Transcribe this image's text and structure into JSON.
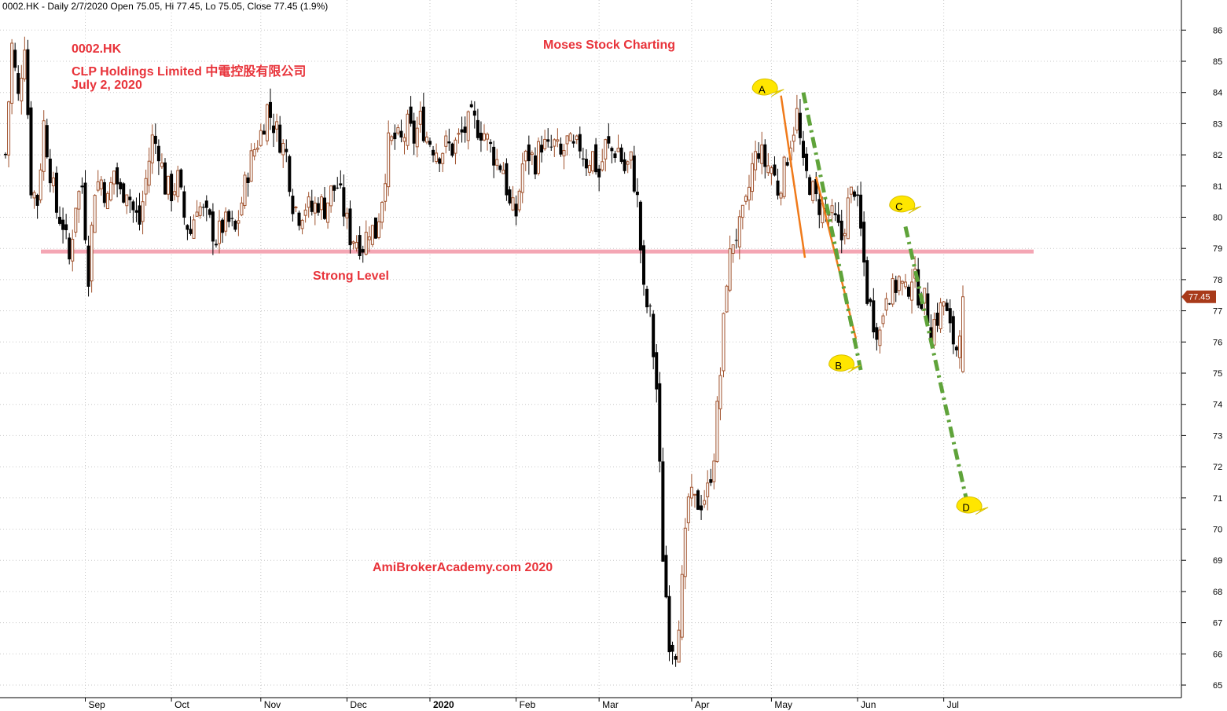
{
  "header": "0002.HK - Daily 2/7/2020 Open 75.05, Hi 77.45, Lo 75.05, Close 77.45 (1.9%)",
  "annotations": {
    "ticker": "0002.HK",
    "company": "CLP Holdings Limited 中電控股有限公司",
    "date": "July 2, 2020",
    "title": "Moses Stock Charting",
    "level_label": "Strong Level",
    "watermark": "AmiBrokerAcademy.com  2020"
  },
  "colors": {
    "up_candle": "#a0522d",
    "down_candle": "#000000",
    "strong_level": "#f4a6b4",
    "trend_orange": "#f07a1a",
    "trend_green": "#5fa33a",
    "callout": "#ffe600",
    "price_tag": "#a83a1a"
  },
  "chart_data": {
    "type": "candlestick",
    "ylim": [
      64.6,
      86.8
    ],
    "y_ticks": [
      65,
      66,
      67,
      68,
      69,
      70,
      71,
      72,
      73,
      74,
      75,
      76,
      77,
      78,
      79,
      80,
      81,
      82,
      83,
      84,
      85,
      86
    ],
    "x_ticks": [
      {
        "label": "Sep",
        "index": 25
      },
      {
        "label": "Oct",
        "index": 52
      },
      {
        "label": "Nov",
        "index": 80
      },
      {
        "label": "Dec",
        "index": 107
      },
      {
        "label": "2020",
        "index": 133
      },
      {
        "label": "Feb",
        "index": 160
      },
      {
        "label": "Mar",
        "index": 186
      },
      {
        "label": "Apr",
        "index": 215
      },
      {
        "label": "May",
        "index": 240
      },
      {
        "label": "Jun",
        "index": 267
      },
      {
        "label": "Jul",
        "index": 294
      }
    ],
    "strong_level": 78.9,
    "last_price": "77.45",
    "anchors": [
      [
        0,
        82
      ],
      [
        2,
        85.5
      ],
      [
        4,
        83.8
      ],
      [
        6,
        85.7
      ],
      [
        8,
        81
      ],
      [
        10,
        80.5
      ],
      [
        12,
        83
      ],
      [
        14,
        81.5
      ],
      [
        16,
        80.2
      ],
      [
        18,
        79.8
      ],
      [
        20,
        78.6
      ],
      [
        22,
        80.5
      ],
      [
        24,
        81
      ],
      [
        26,
        78.2
      ],
      [
        28,
        81
      ],
      [
        30,
        81.2
      ],
      [
        32,
        80.5
      ],
      [
        34,
        81.5
      ],
      [
        36,
        80.7
      ],
      [
        38,
        81
      ],
      [
        40,
        80.2
      ],
      [
        42,
        79.8
      ],
      [
        44,
        81.2
      ],
      [
        46,
        82.5
      ],
      [
        48,
        82.2
      ],
      [
        50,
        81
      ],
      [
        52,
        80.8
      ],
      [
        54,
        81.2
      ],
      [
        56,
        80
      ],
      [
        58,
        79.5
      ],
      [
        60,
        80.5
      ],
      [
        62,
        80.1
      ],
      [
        64,
        79.8
      ],
      [
        66,
        79.3
      ],
      [
        68,
        79.7
      ],
      [
        70,
        79.8
      ],
      [
        72,
        79.5
      ],
      [
        74,
        80.5
      ],
      [
        76,
        81.5
      ],
      [
        78,
        82.2
      ],
      [
        80,
        82.7
      ],
      [
        82,
        83.5
      ],
      [
        84,
        83
      ],
      [
        86,
        82.5
      ],
      [
        88,
        82
      ],
      [
        90,
        80.5
      ],
      [
        92,
        80.1
      ],
      [
        94,
        80.4
      ],
      [
        96,
        80.2
      ],
      [
        98,
        80.5
      ],
      [
        100,
        80.3
      ],
      [
        102,
        80.8
      ],
      [
        104,
        81
      ],
      [
        106,
        80.2
      ],
      [
        108,
        79.4
      ],
      [
        110,
        79.3
      ],
      [
        112,
        79.1
      ],
      [
        114,
        79.7
      ],
      [
        116,
        79.5
      ],
      [
        118,
        80.7
      ],
      [
        120,
        82.3
      ],
      [
        122,
        82.5
      ],
      [
        124,
        82.4
      ],
      [
        126,
        82.9
      ],
      [
        128,
        82.5
      ],
      [
        130,
        83.1
      ],
      [
        132,
        82.6
      ],
      [
        134,
        82.3
      ],
      [
        136,
        82.1
      ],
      [
        138,
        82.3
      ],
      [
        140,
        82.2
      ],
      [
        142,
        82.5
      ],
      [
        144,
        82.8
      ],
      [
        146,
        83.1
      ],
      [
        148,
        82.9
      ],
      [
        150,
        82.7
      ],
      [
        152,
        82.2
      ],
      [
        154,
        81.8
      ],
      [
        156,
        81.6
      ],
      [
        158,
        80.3
      ],
      [
        160,
        80.1
      ],
      [
        162,
        81.7
      ],
      [
        164,
        82
      ],
      [
        166,
        81.8
      ],
      [
        168,
        82.4
      ],
      [
        170,
        82.1
      ],
      [
        172,
        82.3
      ],
      [
        174,
        81.9
      ],
      [
        176,
        82.4
      ],
      [
        178,
        82.1
      ],
      [
        180,
        82.3
      ],
      [
        182,
        81.8
      ],
      [
        184,
        82
      ],
      [
        186,
        81.3
      ],
      [
        188,
        82.3
      ],
      [
        190,
        82.1
      ],
      [
        192,
        82.2
      ],
      [
        194,
        81.5
      ],
      [
        196,
        81.8
      ],
      [
        198,
        80.5
      ],
      [
        200,
        77.5
      ],
      [
        202,
        76.8
      ],
      [
        204,
        74.5
      ],
      [
        206,
        69.2
      ],
      [
        208,
        66.5
      ],
      [
        210,
        66.2
      ],
      [
        212,
        68.2
      ],
      [
        214,
        71
      ],
      [
        216,
        70.8
      ],
      [
        218,
        70.9
      ],
      [
        220,
        71.2
      ],
      [
        222,
        72.5
      ],
      [
        224,
        75
      ],
      [
        226,
        78.1
      ],
      [
        228,
        79.3
      ],
      [
        230,
        79.6
      ],
      [
        232,
        80.3
      ],
      [
        234,
        81.6
      ],
      [
        236,
        82.2
      ],
      [
        238,
        81.7
      ],
      [
        240,
        81.6
      ],
      [
        242,
        80.9
      ],
      [
        244,
        81.5
      ],
      [
        246,
        82.5
      ],
      [
        248,
        83.3
      ],
      [
        250,
        81.5
      ],
      [
        252,
        81.1
      ],
      [
        254,
        80.5
      ],
      [
        256,
        80.3
      ],
      [
        258,
        80.1
      ],
      [
        260,
        79.8
      ],
      [
        262,
        79.3
      ],
      [
        264,
        80.4
      ],
      [
        266,
        81
      ],
      [
        268,
        79.5
      ],
      [
        270,
        77.5
      ],
      [
        272,
        76.7
      ],
      [
        274,
        76.3
      ],
      [
        276,
        77.7
      ],
      [
        278,
        77.6
      ],
      [
        280,
        78
      ],
      [
        282,
        77.5
      ],
      [
        284,
        78.2
      ],
      [
        286,
        77.6
      ],
      [
        288,
        77.3
      ],
      [
        290,
        76.5
      ],
      [
        292,
        76.8
      ],
      [
        294,
        77.3
      ],
      [
        296,
        76.3
      ],
      [
        298,
        75.8
      ],
      [
        300,
        77.45
      ]
    ],
    "callouts": [
      {
        "label": "A",
        "index": 238,
        "y": 84.1
      },
      {
        "label": "B",
        "index": 262,
        "y": 75.25
      },
      {
        "label": "C",
        "index": 281,
        "y": 80.35
      },
      {
        "label": "D",
        "index": 302,
        "y": 70.7
      }
    ],
    "orange_lines": [
      {
        "from": [
          243,
          83.9
        ],
        "to": [
          250.5,
          78.7
        ]
      },
      {
        "from": [
          254,
          81.3
        ],
        "to": [
          266.5,
          76.1
        ]
      }
    ],
    "green_lines": [
      {
        "from": [
          250,
          84
        ],
        "to": [
          268,
          75.1
        ]
      },
      {
        "from": [
          282,
          79.7
        ],
        "to": [
          301,
          71
        ]
      }
    ]
  }
}
